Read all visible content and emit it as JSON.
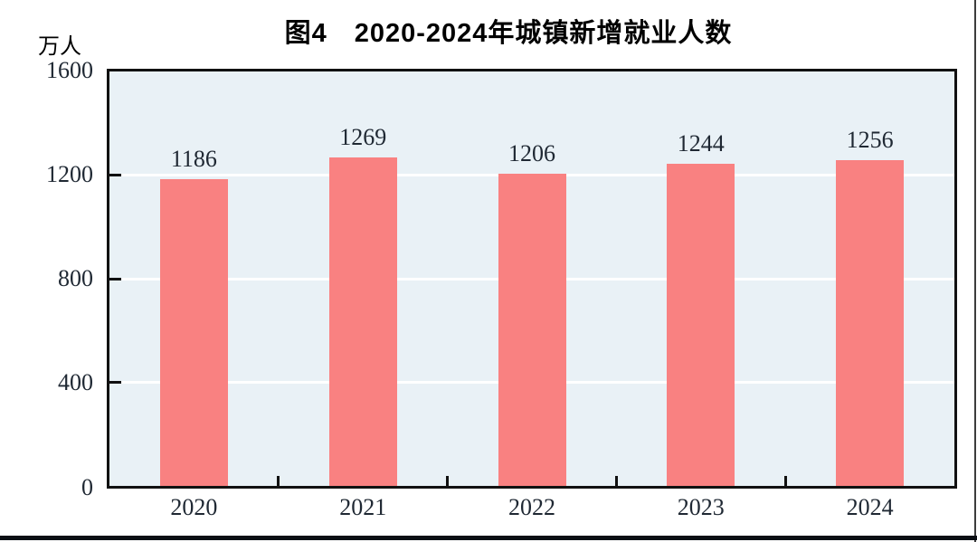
{
  "figure": {
    "title": "图4　2020-2024年城镇新增就业人数",
    "unit_label": "万人"
  },
  "chart_data": {
    "type": "bar",
    "title": "图4　2020-2024年城镇新增就业人数",
    "categories": [
      "2020",
      "2021",
      "2022",
      "2023",
      "2024"
    ],
    "values": [
      1186,
      1269,
      1206,
      1244,
      1256
    ],
    "xlabel": "",
    "ylabel": "万人",
    "ylim": [
      0,
      1600
    ],
    "yticks": [
      0,
      400,
      800,
      1200,
      1600
    ],
    "grid": true,
    "legend_position": "none",
    "bar_color": "#f98181",
    "plot_background": "#e9f1f6",
    "gridline_color": "#ffffff",
    "axis_color": "#111111",
    "label_color": "#1f2833"
  }
}
